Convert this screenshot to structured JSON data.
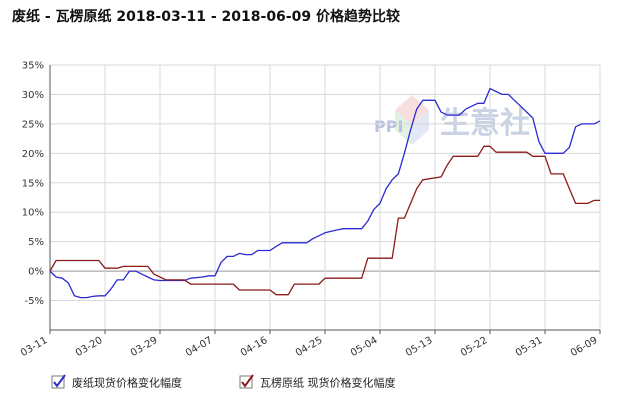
{
  "title": "废纸 - 瓦楞原纸 2018-03-11 - 2018-06-09 价格趋势比较",
  "watermark": {
    "logo": "PPI",
    "text": "生意社"
  },
  "colors": {
    "series1": "#2b2bd1",
    "series2": "#8b1a1a",
    "zero_line": "#a8a8a8",
    "grid": "#d8d8d8",
    "axis": "#555555"
  },
  "chart_data": {
    "type": "line",
    "title": "废纸 - 瓦楞原纸 2018-03-11 - 2018-06-09 价格趋势比较",
    "xlabel": "",
    "ylabel": "",
    "x_ticks": [
      "03-11",
      "03-20",
      "03-29",
      "04-07",
      "04-16",
      "04-25",
      "05-04",
      "05-13",
      "05-22",
      "05-31",
      "06-09"
    ],
    "y_ticks": [
      "35%",
      "30%",
      "25%",
      "20%",
      "15%",
      "10%",
      "5%",
      "0%",
      "-5%"
    ],
    "ylim": [
      -10,
      35
    ],
    "xlim": [
      "03-11",
      "06-09"
    ],
    "grid": true,
    "legend_position": "bottom-left",
    "series": [
      {
        "name": "废纸现货价格变化幅度",
        "color": "#2b2bd1",
        "points": [
          [
            "03-11",
            0
          ],
          [
            "03-12",
            -1
          ],
          [
            "03-13",
            -1.2
          ],
          [
            "03-14",
            -2
          ],
          [
            "03-15",
            -4.2
          ],
          [
            "03-16",
            -4.5
          ],
          [
            "03-17",
            -4.5
          ],
          [
            "03-18",
            -4.3
          ],
          [
            "03-19",
            -4.2
          ],
          [
            "03-20",
            -4.2
          ],
          [
            "03-21",
            -3
          ],
          [
            "03-22",
            -1.5
          ],
          [
            "03-23",
            -1.5
          ],
          [
            "03-24",
            0
          ],
          [
            "03-25",
            0
          ],
          [
            "03-26",
            -0.5
          ],
          [
            "03-27",
            -1
          ],
          [
            "03-28",
            -1.5
          ],
          [
            "03-29",
            -1.6
          ],
          [
            "04-02",
            -1.6
          ],
          [
            "04-03",
            -1.2
          ],
          [
            "04-05",
            -1
          ],
          [
            "04-06",
            -0.8
          ],
          [
            "04-07",
            -0.8
          ],
          [
            "04-08",
            1.5
          ],
          [
            "04-09",
            2.5
          ],
          [
            "04-10",
            2.5
          ],
          [
            "04-11",
            3
          ],
          [
            "04-12",
            2.8
          ],
          [
            "04-13",
            2.8
          ],
          [
            "04-14",
            3.5
          ],
          [
            "04-16",
            3.5
          ],
          [
            "04-17",
            4.2
          ],
          [
            "04-18",
            4.8
          ],
          [
            "04-22",
            4.8
          ],
          [
            "04-23",
            5.5
          ],
          [
            "04-24",
            6
          ],
          [
            "04-25",
            6.5
          ],
          [
            "04-27",
            7
          ],
          [
            "04-28",
            7.2
          ],
          [
            "05-01",
            7.2
          ],
          [
            "05-02",
            8.5
          ],
          [
            "05-03",
            10.5
          ],
          [
            "05-04",
            11.5
          ],
          [
            "05-05",
            14
          ],
          [
            "05-06",
            15.5
          ],
          [
            "05-07",
            16.5
          ],
          [
            "05-08",
            20
          ],
          [
            "05-09",
            24
          ],
          [
            "05-10",
            27.5
          ],
          [
            "05-11",
            29
          ],
          [
            "05-13",
            29
          ],
          [
            "05-14",
            27
          ],
          [
            "05-15",
            26.5
          ],
          [
            "05-17",
            26.5
          ],
          [
            "05-18",
            27.5
          ],
          [
            "05-19",
            28
          ],
          [
            "05-20",
            28.5
          ],
          [
            "05-21",
            28.5
          ],
          [
            "05-22",
            31
          ],
          [
            "05-23",
            30.5
          ],
          [
            "05-24",
            30
          ],
          [
            "05-25",
            30
          ],
          [
            "05-26",
            29
          ],
          [
            "05-27",
            28
          ],
          [
            "05-28",
            27
          ],
          [
            "05-29",
            26
          ],
          [
            "05-30",
            22
          ],
          [
            "05-31",
            20
          ],
          [
            "06-03",
            20
          ],
          [
            "06-04",
            21
          ],
          [
            "06-05",
            24.5
          ],
          [
            "06-06",
            25
          ],
          [
            "06-08",
            25
          ],
          [
            "06-09",
            25.5
          ]
        ]
      },
      {
        "name": "瓦楞原纸 现货价格变化幅度",
        "color": "#8b1a1a",
        "points": [
          [
            "03-11",
            0
          ],
          [
            "03-12",
            1.8
          ],
          [
            "03-19",
            1.8
          ],
          [
            "03-20",
            0.5
          ],
          [
            "03-22",
            0.5
          ],
          [
            "03-23",
            0.8
          ],
          [
            "03-27",
            0.8
          ],
          [
            "03-28",
            -0.5
          ],
          [
            "03-29",
            -1
          ],
          [
            "03-30",
            -1.5
          ],
          [
            "04-02",
            -1.5
          ],
          [
            "04-03",
            -2.2
          ],
          [
            "04-10",
            -2.2
          ],
          [
            "04-11",
            -3.2
          ],
          [
            "04-16",
            -3.2
          ],
          [
            "04-17",
            -4
          ],
          [
            "04-19",
            -4
          ],
          [
            "04-20",
            -2.2
          ],
          [
            "04-24",
            -2.2
          ],
          [
            "04-25",
            -1.2
          ],
          [
            "05-01",
            -1.2
          ],
          [
            "05-02",
            2.2
          ],
          [
            "05-06",
            2.2
          ],
          [
            "05-07",
            9
          ],
          [
            "05-08",
            9
          ],
          [
            "05-09",
            11.5
          ],
          [
            "05-10",
            14
          ],
          [
            "05-11",
            15.5
          ],
          [
            "05-14",
            16
          ],
          [
            "05-15",
            18
          ],
          [
            "05-16",
            19.5
          ],
          [
            "05-20",
            19.5
          ],
          [
            "05-21",
            21.2
          ],
          [
            "05-22",
            21.2
          ],
          [
            "05-23",
            20.2
          ],
          [
            "05-28",
            20.2
          ],
          [
            "05-29",
            19.5
          ],
          [
            "05-31",
            19.5
          ],
          [
            "06-01",
            16.5
          ],
          [
            "06-03",
            16.5
          ],
          [
            "06-04",
            14
          ],
          [
            "06-05",
            11.5
          ],
          [
            "06-07",
            11.5
          ],
          [
            "06-08",
            12
          ],
          [
            "06-09",
            12
          ]
        ]
      }
    ]
  }
}
